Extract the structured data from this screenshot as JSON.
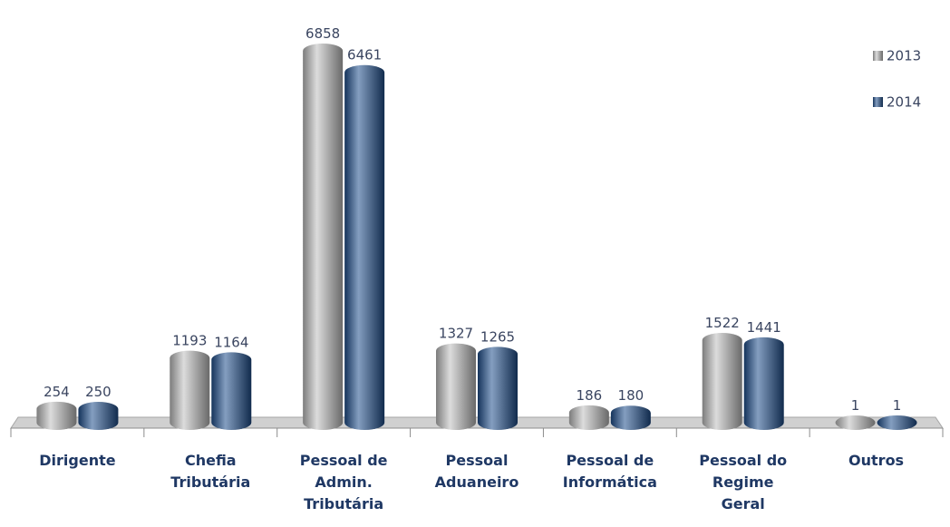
{
  "chart_data": {
    "type": "bar",
    "categories": [
      "Dirigente",
      "Chefia Tributária",
      "Pessoal de Admin. Tributária",
      "Pessoal Aduaneiro",
      "Pessoal de Informática",
      "Pessoal do Regime Geral",
      "Outros"
    ],
    "series": [
      {
        "name": "2013",
        "color": "#bfbfbf",
        "values": [
          254,
          1193,
          6858,
          1327,
          186,
          1522,
          1
        ]
      },
      {
        "name": "2014",
        "color": "#1f4e8c",
        "values": [
          250,
          1164,
          6461,
          1265,
          180,
          1441,
          1
        ]
      }
    ],
    "legend": "top-right"
  }
}
